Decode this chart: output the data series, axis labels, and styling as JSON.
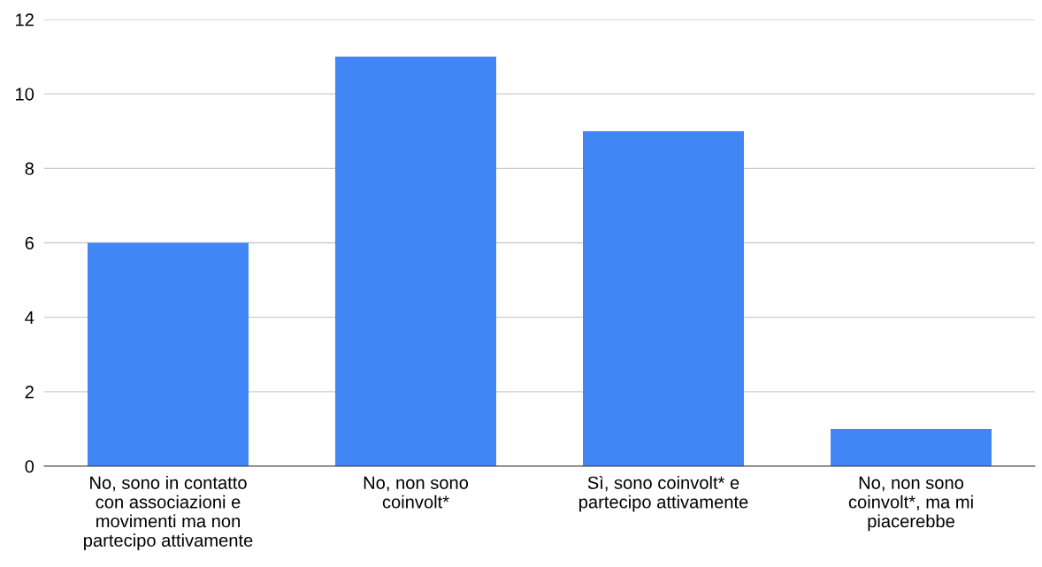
{
  "chart_data": {
    "type": "bar",
    "categories": [
      "No, sono in contatto\ncon associazioni e\nmovimenti ma non\npartecipo attivamente",
      "No, non sono\ncoinvolt*",
      "Sì, sono coinvolt* e\npartecipo attivamente",
      "No, non sono\ncoinvolt*, ma mi\npiacerebbe"
    ],
    "values": [
      6,
      11,
      9,
      1
    ],
    "color": "#4285f4",
    "ylim": [
      0,
      12
    ],
    "yticks": [
      0,
      2,
      4,
      6,
      8,
      10,
      12
    ],
    "grid": "y",
    "legend": false
  }
}
